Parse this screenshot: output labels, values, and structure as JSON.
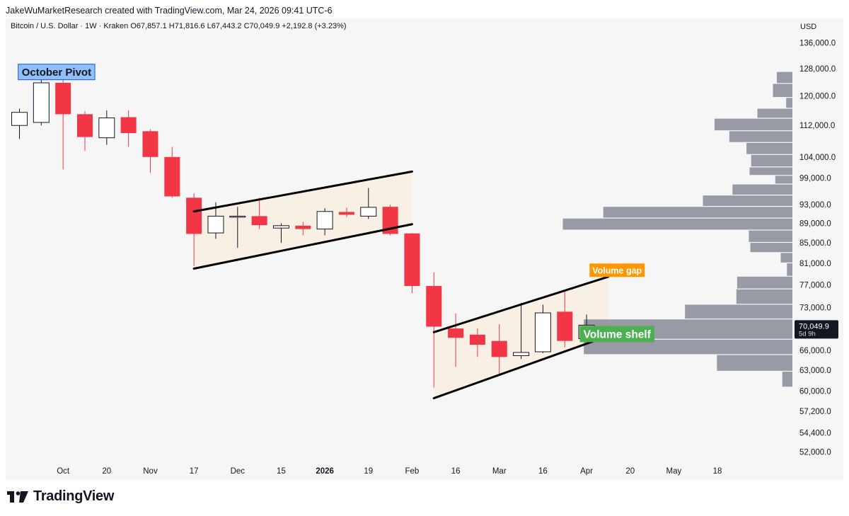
{
  "header": {
    "caption": "JakeWuMarketResearch created with TradingView.com, Mar 24, 2026 09:41 UTC-6"
  },
  "legend": {
    "text": "Bitcoin / U.S. Dollar · 1W · Kraken  O67,857.1  H71,816.6  L67,443.2  C70,049.9  +2,192.8 (+3.23%)"
  },
  "currency": "USD",
  "brand": {
    "name": "TradingView"
  },
  "colors": {
    "down": "#f23645",
    "up_body": "#ffffff",
    "wick_up": "#131722",
    "channel_fill": "#f8efe5",
    "volume_bar": "#8f939d",
    "accent_blue": "#90bff9",
    "accent_orange": "#ff9800",
    "accent_green": "#4caf50"
  },
  "chart_data": {
    "type": "candlestick",
    "title": "Bitcoin / U.S. Dollar · 1W · Kraken",
    "ylabel": "USD",
    "scale": "log",
    "ylim": [
      49500,
      140000
    ],
    "y_ticks": [
      {
        "v": 52000,
        "label": "52,000.0"
      },
      {
        "v": 54400,
        "label": "54,400.0"
      },
      {
        "v": 57200,
        "label": "57,200.0"
      },
      {
        "v": 60000,
        "label": "60,000.0"
      },
      {
        "v": 63000,
        "label": "63,000.0"
      },
      {
        "v": 66000,
        "label": "66,000.0"
      },
      {
        "v": 73000,
        "label": "73,000.0"
      },
      {
        "v": 77000,
        "label": "77,000.0"
      },
      {
        "v": 81000,
        "label": "81,000.0"
      },
      {
        "v": 85000,
        "label": "85,000.0"
      },
      {
        "v": 89000,
        "label": "89,000.0"
      },
      {
        "v": 93000,
        "label": "93,000.0"
      },
      {
        "v": 99000,
        "label": "99,000.0"
      },
      {
        "v": 104000,
        "label": "104,000.0"
      },
      {
        "v": 112000,
        "label": "112,000.0"
      },
      {
        "v": 120000,
        "label": "120,000.0"
      },
      {
        "v": 128000,
        "label": "128,000.0"
      },
      {
        "v": 136000,
        "label": "136,000.0"
      }
    ],
    "x_ticks": [
      {
        "i": 2,
        "label": "Oct",
        "bold": false
      },
      {
        "i": 4,
        "label": "20",
        "bold": false
      },
      {
        "i": 6,
        "label": "Nov",
        "bold": false
      },
      {
        "i": 8,
        "label": "17",
        "bold": false
      },
      {
        "i": 10,
        "label": "Dec",
        "bold": false
      },
      {
        "i": 12,
        "label": "15",
        "bold": false
      },
      {
        "i": 14,
        "label": "2026",
        "bold": true
      },
      {
        "i": 16,
        "label": "19",
        "bold": false
      },
      {
        "i": 18,
        "label": "Feb",
        "bold": false
      },
      {
        "i": 20,
        "label": "16",
        "bold": false
      },
      {
        "i": 22,
        "label": "Mar",
        "bold": false
      },
      {
        "i": 24,
        "label": "16",
        "bold": false
      },
      {
        "i": 26,
        "label": "Apr",
        "bold": false
      },
      {
        "i": 28,
        "label": "20",
        "bold": false
      },
      {
        "i": 30,
        "label": "May",
        "bold": false
      },
      {
        "i": 32,
        "label": "18",
        "bold": false
      }
    ],
    "candles": [
      {
        "o": 112000,
        "h": 116500,
        "l": 108500,
        "c": 115500
      },
      {
        "o": 112800,
        "h": 125500,
        "l": 112000,
        "c": 123800
      },
      {
        "o": 123800,
        "h": 126000,
        "l": 101000,
        "c": 115000
      },
      {
        "o": 115000,
        "h": 115800,
        "l": 105500,
        "c": 109000
      },
      {
        "o": 108800,
        "h": 116000,
        "l": 107000,
        "c": 114000
      },
      {
        "o": 114200,
        "h": 116000,
        "l": 106500,
        "c": 110000
      },
      {
        "o": 110500,
        "h": 111000,
        "l": 100200,
        "c": 104000
      },
      {
        "o": 104000,
        "h": 106500,
        "l": 94500,
        "c": 94800
      },
      {
        "o": 94500,
        "h": 95500,
        "l": 80500,
        "c": 86800
      },
      {
        "o": 87000,
        "h": 93500,
        "l": 85800,
        "c": 90500
      },
      {
        "o": 90400,
        "h": 92500,
        "l": 84000,
        "c": 90500
      },
      {
        "o": 90500,
        "h": 94500,
        "l": 87800,
        "c": 88600
      },
      {
        "o": 88000,
        "h": 89000,
        "l": 85000,
        "c": 88500
      },
      {
        "o": 88500,
        "h": 89300,
        "l": 86500,
        "c": 87800
      },
      {
        "o": 87800,
        "h": 92200,
        "l": 86500,
        "c": 91500
      },
      {
        "o": 91400,
        "h": 92300,
        "l": 90300,
        "c": 90800
      },
      {
        "o": 90500,
        "h": 96700,
        "l": 89900,
        "c": 92400
      },
      {
        "o": 92500,
        "h": 93000,
        "l": 86500,
        "c": 86800
      },
      {
        "o": 86900,
        "h": 87000,
        "l": 75500,
        "c": 76800
      },
      {
        "o": 76800,
        "h": 79300,
        "l": 60500,
        "c": 69800
      },
      {
        "o": 69500,
        "h": 72000,
        "l": 63500,
        "c": 68000
      },
      {
        "o": 68500,
        "h": 69500,
        "l": 65000,
        "c": 66900
      },
      {
        "o": 67500,
        "h": 70200,
        "l": 62500,
        "c": 65000
      },
      {
        "o": 65200,
        "h": 73800,
        "l": 64700,
        "c": 65700
      },
      {
        "o": 65800,
        "h": 73500,
        "l": 65600,
        "c": 72100
      },
      {
        "o": 72300,
        "h": 76000,
        "l": 66500,
        "c": 67500
      },
      {
        "o": 67857.1,
        "h": 71816.6,
        "l": 67443.2,
        "c": 70049.9
      }
    ],
    "last_price": {
      "value": 70049.9,
      "label": "70,049.9",
      "countdown": "5d 9h"
    },
    "channels": [
      {
        "upper": [
          [
            8,
            91500
          ],
          [
            18,
            100500
          ]
        ],
        "lower": [
          [
            8,
            80000
          ],
          [
            18,
            88800
          ]
        ]
      },
      {
        "upper": [
          [
            19,
            68900
          ],
          [
            27,
            78500
          ]
        ],
        "lower": [
          [
            19,
            59000
          ],
          [
            27,
            68300
          ]
        ]
      }
    ],
    "volume_profile": [
      {
        "lo": 123500,
        "hi": 127000,
        "size": 0.2
      },
      {
        "lo": 119500,
        "hi": 123500,
        "size": 0.25
      },
      {
        "lo": 116500,
        "hi": 119500,
        "size": 0.08
      },
      {
        "lo": 113800,
        "hi": 116500,
        "size": 0.45
      },
      {
        "lo": 110500,
        "hi": 113800,
        "size": 1.0
      },
      {
        "lo": 107500,
        "hi": 110500,
        "size": 0.81
      },
      {
        "lo": 104500,
        "hi": 107500,
        "size": 0.59
      },
      {
        "lo": 101500,
        "hi": 104500,
        "size": 0.53
      },
      {
        "lo": 99500,
        "hi": 101500,
        "size": 0.55
      },
      {
        "lo": 97500,
        "hi": 99500,
        "size": 0.22
      },
      {
        "lo": 95000,
        "hi": 97500,
        "size": 0.77
      },
      {
        "lo": 92500,
        "hi": 95000,
        "size": 1.15
      },
      {
        "lo": 90000,
        "hi": 92500,
        "size": 2.43
      },
      {
        "lo": 87500,
        "hi": 90000,
        "size": 2.95
      },
      {
        "lo": 85000,
        "hi": 87500,
        "size": 0.56
      },
      {
        "lo": 83000,
        "hi": 85000,
        "size": 0.54
      },
      {
        "lo": 81000,
        "hi": 83000,
        "size": 0.15
      },
      {
        "lo": 78500,
        "hi": 81000,
        "size": 0.07
      },
      {
        "lo": 76200,
        "hi": 78500,
        "size": 0.71
      },
      {
        "lo": 73500,
        "hi": 76200,
        "size": 0.72
      },
      {
        "lo": 71000,
        "hi": 73500,
        "size": 1.38
      },
      {
        "lo": 67700,
        "hi": 71000,
        "size": 2.68
      },
      {
        "lo": 65300,
        "hi": 67700,
        "size": 2.68
      },
      {
        "lo": 62800,
        "hi": 65300,
        "size": 0.97
      },
      {
        "lo": 60500,
        "hi": 62800,
        "size": 0.13
      }
    ],
    "annotations": [
      {
        "text": "October Pivot",
        "style": "blue",
        "at_i": 1.7,
        "at_v": 127000
      },
      {
        "text": "Volume gap",
        "style": "orange",
        "at_i": 27.4,
        "at_v": 79700
      },
      {
        "text": "Volume shelf",
        "style": "green",
        "at_i": 27.4,
        "at_v": 68600
      }
    ]
  }
}
